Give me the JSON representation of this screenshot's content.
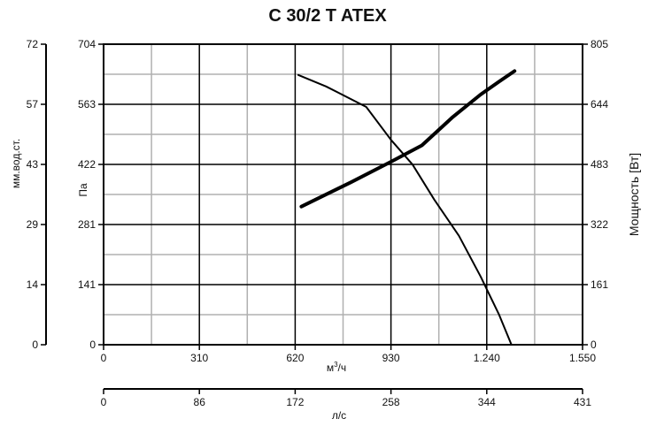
{
  "chart_data": {
    "type": "line",
    "title": "C 30/2 T ATEX",
    "xlabel": "м³/ч",
    "xlabel_base": "м",
    "xlabel_sup": "3",
    "xlabel_tail": "/ч",
    "x2label": "л/с",
    "ylabel_left_outer": "мм.вод.ст.",
    "ylabel_left_inner": "Па",
    "ylabel_right": "Мощность [Вт]",
    "xlim": [
      0,
      1550
    ],
    "xticks": [
      "0",
      "310",
      "620",
      "930",
      "1.240",
      "1.550"
    ],
    "x2ticks": [
      "0",
      "86",
      "172",
      "258",
      "344",
      "431"
    ],
    "ylim_pa": [
      0,
      704
    ],
    "yticks_pa": [
      "0",
      "141",
      "281",
      "422",
      "563",
      "704"
    ],
    "yticks_mm": [
      "0",
      "14",
      "29",
      "43",
      "57",
      "72"
    ],
    "ylim_power": [
      0,
      805
    ],
    "yticks_power": [
      "0",
      "161",
      "322",
      "483",
      "644",
      "805"
    ],
    "grid": true,
    "series": [
      {
        "axis": "pressure",
        "x": [
          630,
          720,
          850,
          930,
          1000,
          1070,
          1150,
          1220,
          1280,
          1320
        ],
        "y": [
          632,
          605,
          557,
          480,
          422,
          340,
          255,
          160,
          70,
          0
        ]
      },
      {
        "axis": "power",
        "x": [
          640,
          800,
          930,
          1030,
          1130,
          1220,
          1280,
          1330
        ],
        "y": [
          370,
          435,
          490,
          534,
          610,
          670,
          705,
          733
        ]
      }
    ]
  }
}
